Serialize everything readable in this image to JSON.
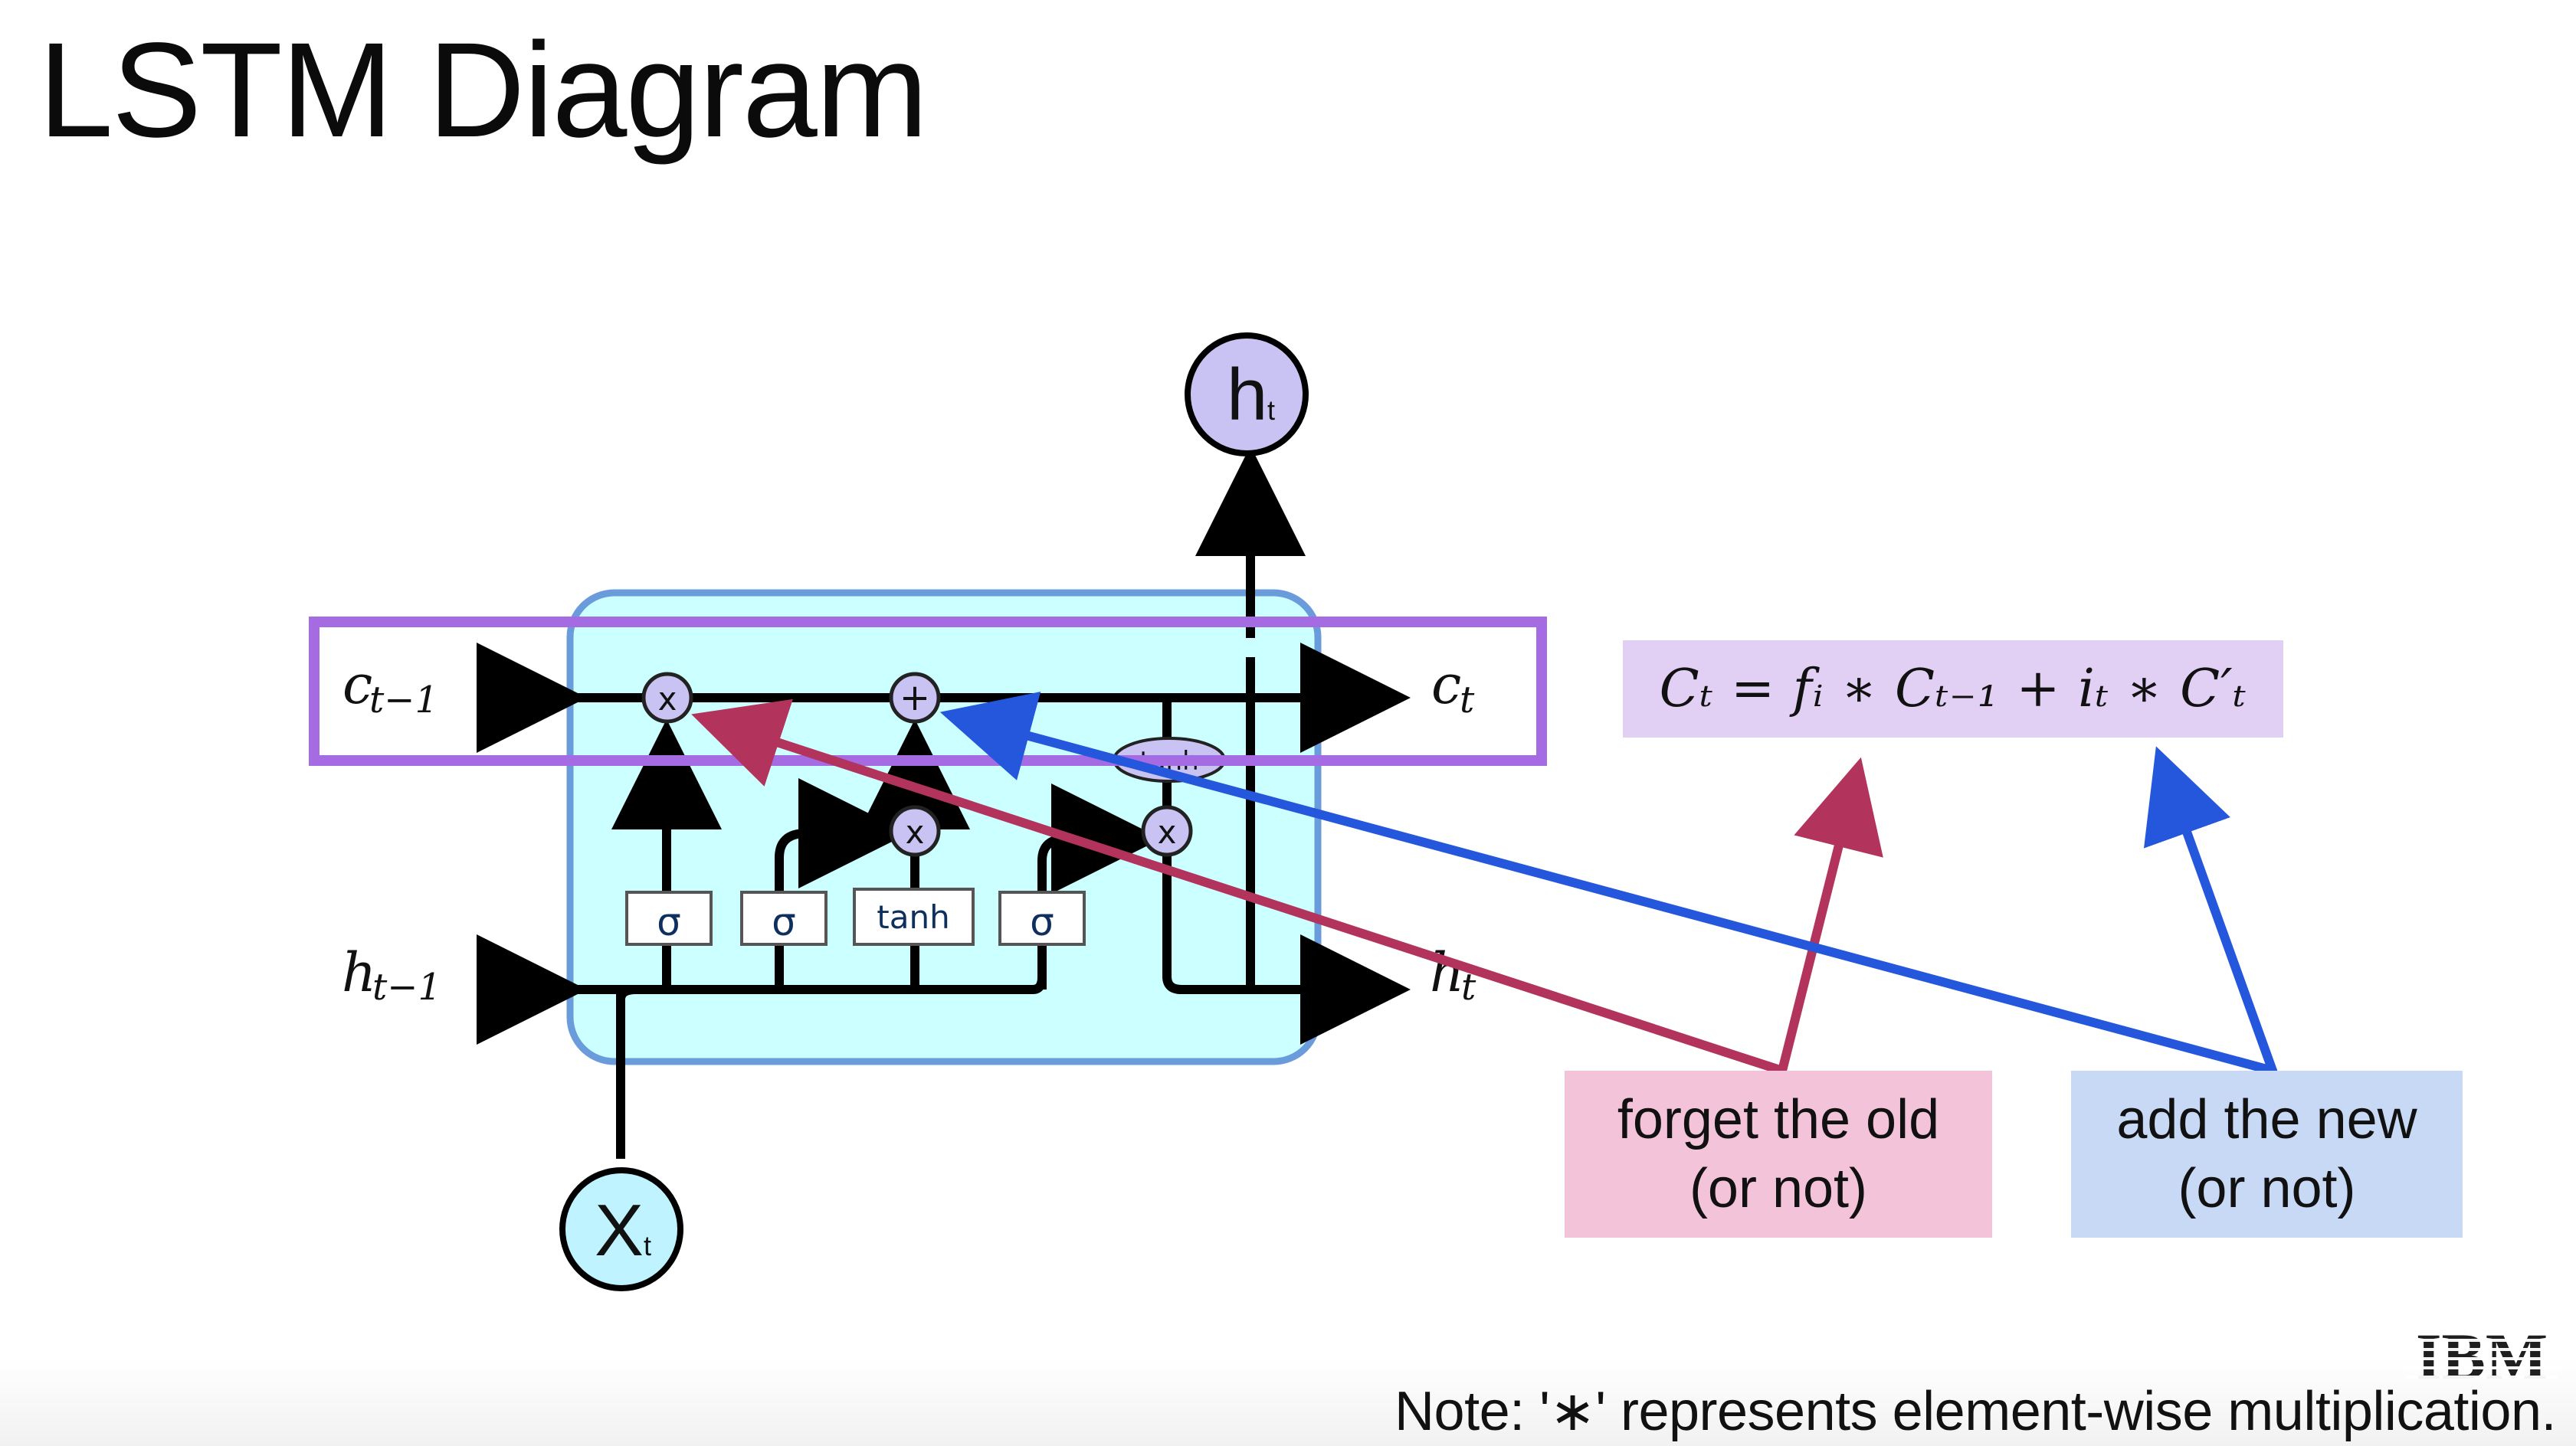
{
  "slide": {
    "title": "LSTM Diagram",
    "note": "Note: '∗' represents element-wise multiplication.",
    "logo": "IBM"
  },
  "diagram": {
    "inputs": {
      "cell_prev": "c",
      "cell_prev_sub": "t−1",
      "hidden_prev": "h",
      "hidden_prev_sub": "t−1",
      "x": "X",
      "x_sub": "t"
    },
    "outputs": {
      "cell": "c",
      "cell_sub": "t",
      "hidden": "h",
      "hidden_sub": "t",
      "top": "h",
      "top_sub": "t"
    },
    "gates": [
      "σ",
      "σ",
      "tanh",
      "σ"
    ],
    "operators": {
      "multiply": "x",
      "add": "+"
    },
    "cell_state_tanh": "tanh"
  },
  "equation": "Cₜ = fᵢ ∗ Cₜ₋₁ + iₜ ∗ C′ₜ",
  "callouts": {
    "forget": "forget the old\n(or not)",
    "add": "add the new\n(or not)"
  },
  "colors": {
    "cell_fill": "#ccffff",
    "cell_border": "#6a9cdc",
    "highlight_border": "#a56be3",
    "forget_arrow": "#b2335b",
    "add_arrow": "#2557dd",
    "node_fill": "#c9c3f3",
    "x_node_fill": "#bff3ff"
  }
}
